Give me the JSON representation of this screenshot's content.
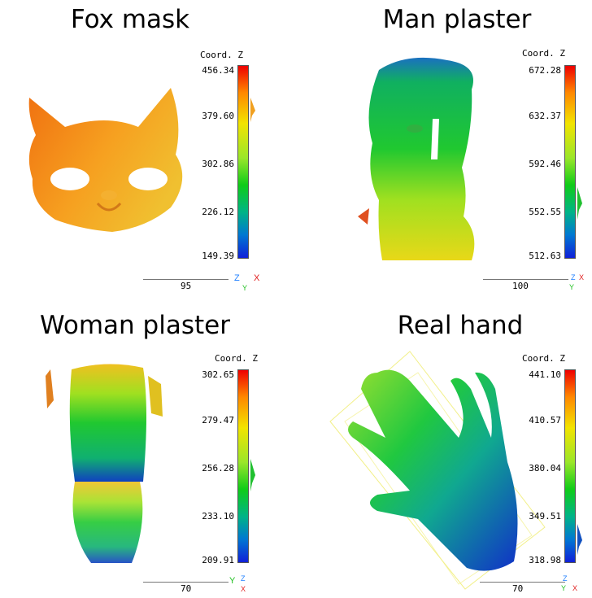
{
  "panels": [
    {
      "title": "Fox mask",
      "colorbar_label": "Coord. Z",
      "ticks": [
        "456.34",
        "379.60",
        "302.86",
        "226.12",
        "149.39"
      ],
      "scale": "95",
      "axis_labels": [
        "Z",
        "X",
        "Y"
      ]
    },
    {
      "title": "Man plaster",
      "colorbar_label": "Coord. Z",
      "ticks": [
        "672.28",
        "632.37",
        "592.46",
        "552.55",
        "512.63"
      ],
      "scale": "100",
      "axis_labels": [
        "Z",
        "X",
        "Y"
      ]
    },
    {
      "title": "Woman plaster",
      "colorbar_label": "Coord. Z",
      "ticks": [
        "302.65",
        "279.47",
        "256.28",
        "233.10",
        "209.91"
      ],
      "scale": "70",
      "axis_labels": [
        "Y",
        "X",
        "Z"
      ]
    },
    {
      "title": "Real hand",
      "colorbar_label": "Coord. Z",
      "ticks": [
        "441.10",
        "410.57",
        "380.04",
        "349.51",
        "318.98"
      ],
      "scale": "70",
      "axis_labels": [
        "Z",
        "X",
        "Y"
      ]
    }
  ],
  "colors": {
    "red": "#ee0000",
    "orange": "#ff8800",
    "yellow": "#f2e400",
    "green": "#10cc18",
    "blue": "#1020d8",
    "axis_x": "#e02020",
    "axis_y": "#20c020",
    "axis_z": "#2080ff"
  }
}
